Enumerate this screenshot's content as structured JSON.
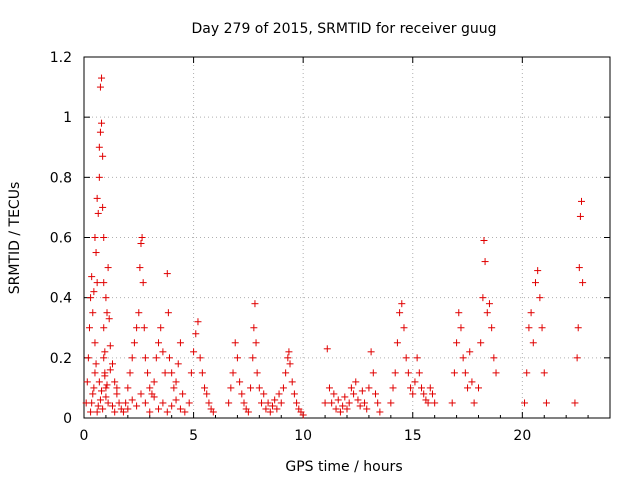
{
  "chart_data": {
    "type": "scatter",
    "title": "Day 279 of 2015, SRMTID for receiver guug",
    "xlabel": "GPS time / hours",
    "ylabel": "SRMTID / TECUs",
    "xlim": [
      0,
      24
    ],
    "ylim": [
      0,
      1.2
    ],
    "xticks": [
      0,
      5,
      10,
      15,
      20
    ],
    "xtick_labels": [
      "0",
      "5",
      "10",
      "15",
      "20"
    ],
    "yticks": [
      0,
      0.2,
      0.4,
      0.6,
      0.8,
      1.0,
      1.2
    ],
    "ytick_labels": [
      "0",
      "0.2",
      "0.4",
      "0.6",
      "0.8",
      "1",
      "1.2"
    ],
    "grid": true,
    "marker": "+",
    "color": "#e00000",
    "series": [
      {
        "x": [
          0.1,
          0.15,
          0.2,
          0.25,
          0.3,
          0.35,
          0.4,
          0.45,
          0.5,
          0.5,
          0.55,
          0.6,
          0.6,
          0.65,
          0.7,
          0.7,
          0.75,
          0.75,
          0.8,
          0.8,
          0.85,
          0.85,
          0.9,
          0.9,
          0.9,
          0.95,
          0.95,
          1.0,
          1.0,
          1.05,
          1.1,
          1.15,
          1.2,
          1.3,
          1.4,
          1.5,
          1.6,
          1.7,
          0.3,
          0.35,
          0.4,
          0.45,
          0.5,
          0.55,
          0.6,
          0.65,
          0.7,
          0.75,
          0.8,
          0.85,
          0.9,
          0.95,
          1.0,
          1.05,
          1.1,
          1.2,
          1.3,
          1.4,
          1.5,
          1.8,
          1.9,
          2.0,
          2.1,
          2.2,
          2.3,
          2.4,
          2.5,
          2.55,
          2.6,
          2.65,
          2.7,
          2.75,
          2.8,
          2.9,
          3.0,
          3.1,
          3.2,
          3.3,
          3.4,
          3.5,
          3.6,
          3.7,
          3.8,
          3.85,
          3.9,
          4.0,
          4.1,
          4.2,
          4.3,
          4.4,
          4.5,
          2.0,
          2.2,
          2.4,
          2.6,
          2.8,
          3.0,
          3.2,
          3.4,
          3.6,
          3.8,
          4.0,
          4.2,
          4.4,
          4.6,
          4.8,
          4.9,
          5.0,
          5.1,
          5.2,
          5.3,
          5.4,
          5.5,
          5.6,
          5.7,
          5.8,
          5.9,
          6.6,
          6.7,
          6.8,
          6.9,
          7.0,
          7.1,
          7.2,
          7.3,
          7.4,
          7.5,
          7.6,
          7.7,
          7.75,
          7.8,
          7.85,
          7.9,
          8.0,
          8.1,
          8.2,
          8.3,
          8.4,
          8.5,
          8.6,
          8.7,
          8.8,
          8.9,
          9.0,
          9.1,
          9.2,
          9.3,
          9.35,
          9.4,
          9.5,
          9.6,
          9.7,
          9.8,
          9.9,
          10.0,
          11.0,
          11.1,
          11.2,
          11.3,
          11.4,
          11.5,
          11.6,
          11.7,
          11.8,
          11.9,
          12.0,
          12.1,
          12.2,
          12.3,
          12.4,
          12.5,
          12.6,
          12.7,
          12.8,
          12.9,
          13.0,
          13.1,
          13.2,
          13.3,
          13.4,
          13.5,
          14.0,
          14.1,
          14.2,
          14.3,
          14.4,
          14.5,
          14.6,
          14.7,
          14.8,
          14.9,
          15.0,
          15.1,
          15.2,
          15.3,
          15.4,
          15.5,
          15.6,
          15.7,
          15.8,
          15.9,
          16.0,
          16.8,
          16.9,
          17.0,
          17.1,
          17.2,
          17.3,
          17.4,
          17.5,
          17.6,
          17.7,
          17.8,
          18.0,
          18.1,
          18.2,
          18.25,
          18.3,
          18.4,
          18.5,
          18.6,
          18.7,
          18.8,
          20.1,
          20.2,
          20.3,
          20.4,
          20.5,
          20.6,
          20.7,
          20.8,
          20.9,
          21.0,
          21.1,
          22.4,
          22.5,
          22.55,
          22.6,
          22.65,
          22.7,
          22.75
        ],
        "y": [
          0.05,
          0.12,
          0.2,
          0.3,
          0.4,
          0.47,
          0.35,
          0.42,
          0.25,
          0.6,
          0.55,
          0.45,
          0.73,
          0.68,
          0.8,
          0.9,
          0.95,
          1.1,
          1.13,
          0.98,
          0.87,
          0.7,
          0.6,
          0.45,
          0.3,
          0.22,
          0.15,
          0.4,
          0.1,
          0.35,
          0.5,
          0.33,
          0.24,
          0.18,
          0.12,
          0.08,
          0.05,
          0.03,
          0.02,
          0.05,
          0.08,
          0.1,
          0.15,
          0.18,
          0.02,
          0.04,
          0.12,
          0.06,
          0.09,
          0.03,
          0.2,
          0.14,
          0.07,
          0.11,
          0.05,
          0.16,
          0.04,
          0.02,
          0.1,
          0.02,
          0.05,
          0.1,
          0.15,
          0.2,
          0.25,
          0.3,
          0.35,
          0.5,
          0.58,
          0.6,
          0.45,
          0.3,
          0.2,
          0.15,
          0.1,
          0.08,
          0.12,
          0.2,
          0.25,
          0.3,
          0.22,
          0.15,
          0.48,
          0.35,
          0.2,
          0.15,
          0.1,
          0.12,
          0.18,
          0.25,
          0.08,
          0.03,
          0.06,
          0.04,
          0.08,
          0.05,
          0.02,
          0.07,
          0.03,
          0.05,
          0.02,
          0.04,
          0.06,
          0.03,
          0.02,
          0.05,
          0.15,
          0.22,
          0.28,
          0.32,
          0.2,
          0.15,
          0.1,
          0.08,
          0.05,
          0.03,
          0.02,
          0.05,
          0.1,
          0.15,
          0.25,
          0.2,
          0.12,
          0.08,
          0.05,
          0.03,
          0.02,
          0.1,
          0.2,
          0.3,
          0.38,
          0.25,
          0.15,
          0.1,
          0.05,
          0.08,
          0.03,
          0.05,
          0.02,
          0.04,
          0.06,
          0.03,
          0.08,
          0.05,
          0.1,
          0.15,
          0.2,
          0.22,
          0.18,
          0.12,
          0.08,
          0.05,
          0.03,
          0.02,
          0.01,
          0.05,
          0.23,
          0.1,
          0.05,
          0.08,
          0.03,
          0.06,
          0.02,
          0.04,
          0.07,
          0.03,
          0.05,
          0.1,
          0.08,
          0.12,
          0.06,
          0.04,
          0.09,
          0.05,
          0.03,
          0.1,
          0.22,
          0.15,
          0.08,
          0.05,
          0.02,
          0.05,
          0.1,
          0.15,
          0.25,
          0.35,
          0.38,
          0.3,
          0.2,
          0.15,
          0.1,
          0.08,
          0.12,
          0.2,
          0.15,
          0.1,
          0.08,
          0.06,
          0.05,
          0.1,
          0.08,
          0.05,
          0.05,
          0.15,
          0.25,
          0.35,
          0.3,
          0.2,
          0.15,
          0.1,
          0.22,
          0.12,
          0.05,
          0.1,
          0.25,
          0.4,
          0.59,
          0.52,
          0.35,
          0.38,
          0.3,
          0.2,
          0.15,
          0.05,
          0.15,
          0.3,
          0.35,
          0.25,
          0.45,
          0.49,
          0.4,
          0.3,
          0.15,
          0.05,
          0.05,
          0.2,
          0.3,
          0.5,
          0.67,
          0.72,
          0.45
        ]
      }
    ]
  }
}
